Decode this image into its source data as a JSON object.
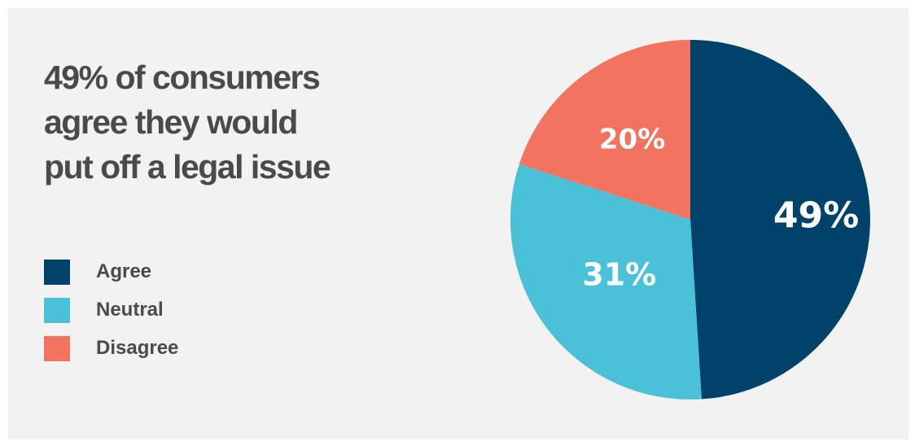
{
  "chart_data": {
    "type": "pie",
    "title": "49% of consumers agree they would put off a legal issue",
    "title_lines": [
      "49% of consumers",
      "agree they would",
      "put off a legal issue"
    ],
    "legend_placement": "left",
    "slices": [
      {
        "label": "Agree",
        "value": 49,
        "display": "49%",
        "color": "#01426a"
      },
      {
        "label": "Neutral",
        "value": 31,
        "display": "31%",
        "color": "#4ac1d6"
      },
      {
        "label": "Disagree",
        "value": 20,
        "display": "20%",
        "color": "#f2735f"
      }
    ]
  },
  "colors": {
    "background": "#f2f2f2",
    "text": "#4a4a4a",
    "slice_text": "#ffffff"
  }
}
